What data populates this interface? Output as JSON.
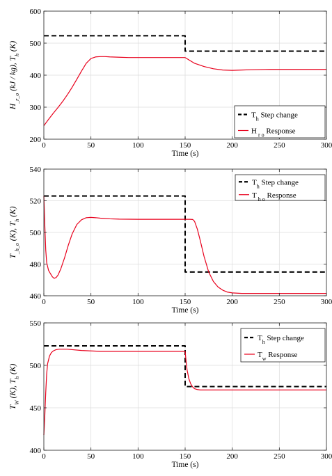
{
  "chart_data": [
    {
      "type": "line",
      "xlabel": "Time (s)",
      "ylabel": "H_r_o (kJ / kg), T_h (K)",
      "ylabel_parts": {
        "a": "H",
        "a_sub": "_r_o",
        "b": "(kJ / kg), T",
        "b_sub": "h",
        "c": "(K)"
      },
      "xlim": [
        0,
        300
      ],
      "ylim": [
        200,
        600
      ],
      "xticks": [
        "0",
        "50",
        "100",
        "150",
        "200",
        "250",
        "300"
      ],
      "yticks": [
        "200",
        "300",
        "400",
        "500",
        "600"
      ],
      "grid": true,
      "legend_position": "bottom-right",
      "series": [
        {
          "name": "T_h Step change",
          "label_main": "T",
          "label_sub": "h",
          "label_rest": " Step change",
          "color": "#000000",
          "dash": "dashed",
          "x": [
            0,
            150,
            150,
            300
          ],
          "y": [
            523,
            523,
            475,
            475
          ]
        },
        {
          "name": "H_r_o Response",
          "label_main": "H",
          "label_sub": "   r    o",
          "label_rest": " Response",
          "color": "#e8001c",
          "dash": "solid",
          "x": [
            0,
            5,
            10,
            15,
            20,
            25,
            30,
            35,
            40,
            45,
            50,
            55,
            60,
            65,
            70,
            80,
            90,
            100,
            110,
            120,
            130,
            140,
            150,
            155,
            160,
            170,
            180,
            190,
            200,
            210,
            220,
            240,
            260,
            280,
            300
          ],
          "y": [
            242,
            262,
            281,
            299,
            318,
            339,
            362,
            387,
            413,
            437,
            452,
            457,
            458,
            458,
            457,
            456,
            455,
            455,
            455,
            455,
            455,
            455,
            455,
            446,
            437,
            427,
            420,
            416,
            415,
            416,
            417,
            418,
            418,
            418,
            418
          ]
        }
      ]
    },
    {
      "type": "line",
      "xlabel": "Time (s)",
      "ylabel": "T_h_o (K), T_h (K)",
      "ylabel_parts": {
        "a": "T",
        "a_sub": "_h_o",
        "b": "(K), T",
        "b_sub": "h",
        "c": "(K)"
      },
      "xlim": [
        0,
        300
      ],
      "ylim": [
        460,
        540
      ],
      "xticks": [
        "0",
        "50",
        "100",
        "150",
        "200",
        "250",
        "300"
      ],
      "yticks": [
        "460",
        "480",
        "500",
        "520",
        "540"
      ],
      "grid": true,
      "legend_position": "top-right",
      "series": [
        {
          "name": "T_h Step change",
          "label_main": "T",
          "label_sub": "h",
          "label_rest": " Step change",
          "color": "#000000",
          "dash": "dashed",
          "x": [
            0,
            150,
            150,
            300
          ],
          "y": [
            523,
            523,
            475,
            475
          ]
        },
        {
          "name": "T_h_o Response",
          "label_main": "T",
          "label_sub": "  h   o",
          "label_rest": " Response",
          "color": "#e8001c",
          "dash": "solid",
          "x": [
            0,
            1,
            2,
            3,
            5,
            7,
            9,
            11,
            13,
            15,
            18,
            22,
            26,
            30,
            35,
            40,
            45,
            50,
            55,
            60,
            70,
            80,
            100,
            120,
            140,
            150,
            155,
            158,
            160,
            163,
            166,
            170,
            175,
            180,
            185,
            190,
            195,
            200,
            210,
            220,
            240,
            260,
            280,
            300
          ],
          "y": [
            523,
            505,
            489,
            481,
            476,
            474,
            472,
            471,
            471.5,
            473,
            477,
            484,
            492,
            499,
            505,
            508,
            509.3,
            509.5,
            509.3,
            509,
            508.6,
            508.4,
            508.3,
            508.3,
            508.3,
            508.3,
            508.3,
            508.2,
            507,
            502,
            495,
            485,
            475,
            469,
            465.5,
            463.5,
            462.3,
            461.8,
            461.5,
            461.5,
            461.5,
            461.5,
            461.5,
            461.5
          ]
        }
      ]
    },
    {
      "type": "line",
      "xlabel": "Time (s)",
      "ylabel": "T_W (K), T_h (K)",
      "ylabel_parts": {
        "a": "T",
        "a_sub": "W",
        "b": "(K), T",
        "b_sub": "h",
        "c": "(K)"
      },
      "xlim": [
        0,
        300
      ],
      "ylim": [
        400,
        550
      ],
      "xticks": [
        "0",
        "50",
        "100",
        "150",
        "200",
        "250",
        "300"
      ],
      "yticks": [
        "400",
        "450",
        "500",
        "550"
      ],
      "grid": true,
      "legend_position": "top-right",
      "series": [
        {
          "name": "T_h Step change",
          "label_main": "T",
          "label_sub": "h",
          "label_rest": " Step change",
          "color": "#000000",
          "dash": "dashed",
          "x": [
            0,
            150,
            150,
            300
          ],
          "y": [
            523,
            523,
            475,
            475
          ]
        },
        {
          "name": "T_w Response",
          "label_main": "T",
          "label_sub": "w",
          "label_rest": " Response",
          "color": "#e8001c",
          "dash": "solid",
          "x": [
            0,
            1,
            2,
            3,
            4,
            6,
            8,
            10,
            13,
            16,
            20,
            25,
            30,
            40,
            50,
            60,
            80,
            100,
            120,
            140,
            150,
            151,
            152,
            154,
            156,
            158,
            160,
            163,
            166,
            170,
            180,
            200,
            220,
            250,
            300
          ],
          "y": [
            418,
            440,
            468,
            490,
            502,
            511,
            515,
            517,
            518.5,
            519,
            519,
            519,
            518.5,
            517.5,
            517,
            516.5,
            516.5,
            516.5,
            516.5,
            516.5,
            516.5,
            505,
            495,
            484,
            478,
            474.5,
            472.5,
            471.5,
            471,
            471,
            471,
            471,
            471,
            471,
            471
          ]
        }
      ]
    }
  ]
}
